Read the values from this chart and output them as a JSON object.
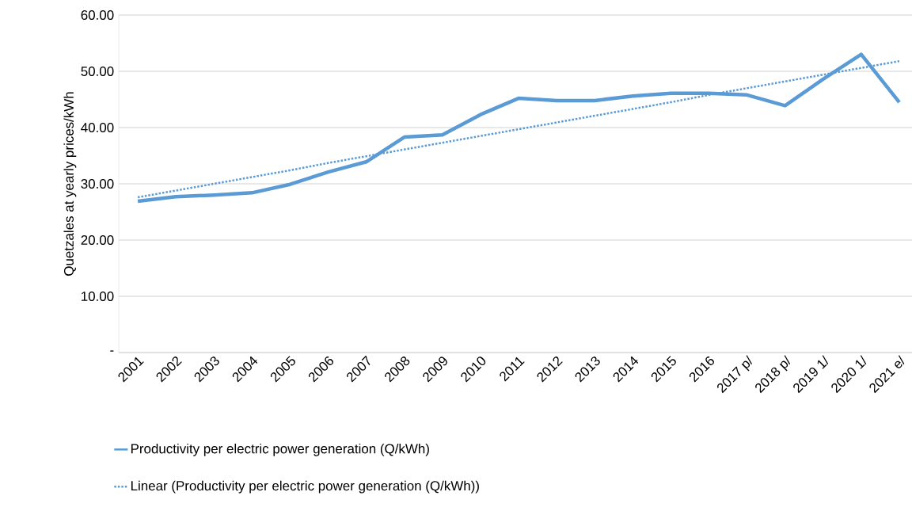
{
  "chart_data": {
    "type": "line",
    "ylabel": "Quetzales at yearly prices/kWh",
    "categories": [
      "2001",
      "2002",
      "2003",
      "2004",
      "2005",
      "2006",
      "2007",
      "2008",
      "2009",
      "2010",
      "2011",
      "2012",
      "2013",
      "2014",
      "2015",
      "2016",
      "2017 p/",
      "2018 p/",
      "2019 1/",
      "2020 1/",
      "2021 e/"
    ],
    "ylim": [
      0,
      60
    ],
    "yticks": [
      {
        "value": 0,
        "label": "-"
      },
      {
        "value": 10,
        "label": "10.00"
      },
      {
        "value": 20,
        "label": "20.00"
      },
      {
        "value": 30,
        "label": "30.00"
      },
      {
        "value": 40,
        "label": "40.00"
      },
      {
        "value": 50,
        "label": "50.00"
      },
      {
        "value": 60,
        "label": "60.00"
      }
    ],
    "grid": "y",
    "legend": "bottom",
    "series": [
      {
        "name": "Productivity per electric power generation (Q/kWh)",
        "color": "#5b9bd5",
        "line_style": "solid",
        "values": [
          26.9,
          27.7,
          28.0,
          28.4,
          29.9,
          32.1,
          33.9,
          38.3,
          38.7,
          42.3,
          45.2,
          44.8,
          44.8,
          45.6,
          46.1,
          46.1,
          45.8,
          43.9,
          48.6,
          53.0,
          44.5
        ]
      },
      {
        "name": "Linear (Productivity per electric power generation (Q/kWh))",
        "type": "line",
        "color": "#5b9bd5",
        "line_style": "dotted",
        "values": [
          27.6,
          28.8,
          30.0,
          31.2,
          32.4,
          33.7,
          34.9,
          36.1,
          37.3,
          38.5,
          39.7,
          40.9,
          42.1,
          43.3,
          44.5,
          45.8,
          47.0,
          48.2,
          49.4,
          50.6,
          51.8
        ]
      }
    ]
  }
}
